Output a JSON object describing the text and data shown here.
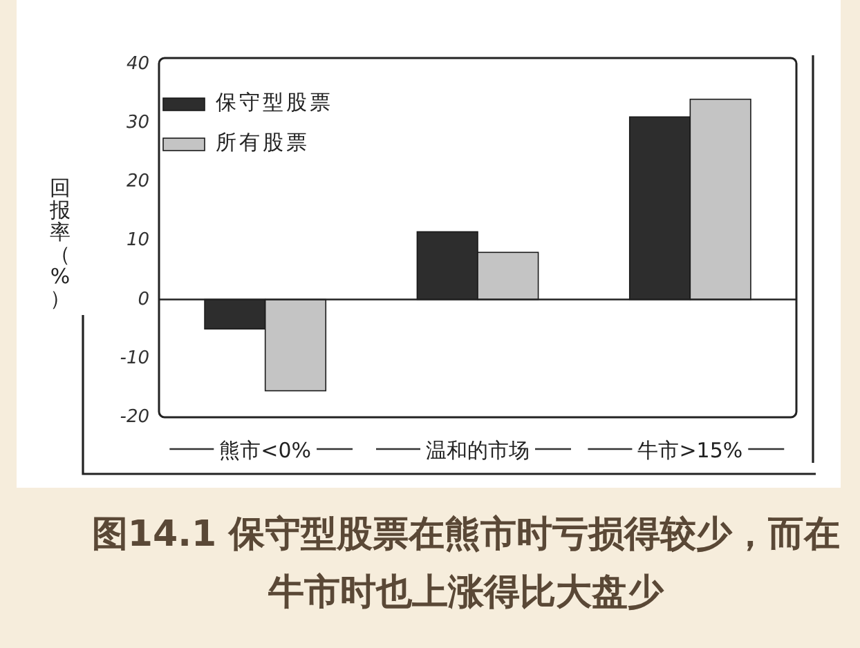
{
  "chart_data": {
    "type": "bar",
    "ylabel": "回报率（%）",
    "categories": [
      "熊市<0%",
      "温和的市场",
      "牛市>15%"
    ],
    "series": [
      {
        "name": "保守型股票",
        "color": "#2d2d2d",
        "values": [
          -5,
          11.5,
          31
        ]
      },
      {
        "name": "所有股票",
        "color": "#c4c4c4",
        "values": [
          -15.5,
          8,
          34
        ]
      }
    ],
    "ylim": [
      -20,
      41
    ],
    "yticks": [
      -20,
      -10,
      0,
      10,
      20,
      30,
      40
    ],
    "legend": "top left",
    "annotations": [
      "图14.1 保守型股票在熊市时亏损得较少，而在牛市时也上涨得比大盘少"
    ]
  }
}
